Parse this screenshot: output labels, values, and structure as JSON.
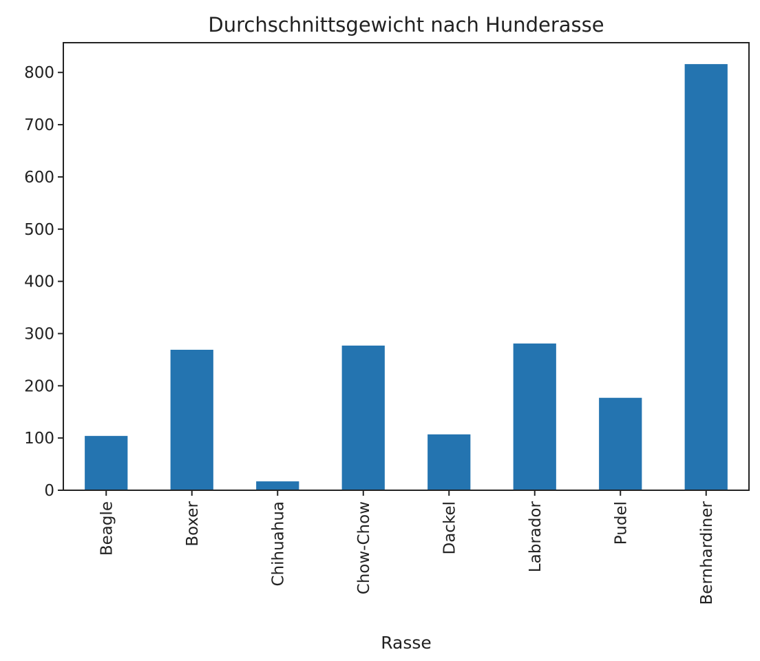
{
  "chart_data": {
    "type": "bar",
    "title": "Durchschnittsgewicht nach Hunderasse",
    "xlabel": "Rasse",
    "ylabel": "",
    "categories": [
      "Beagle",
      "Boxer",
      "Chihuahua",
      "Chow-Chow",
      "Dackel",
      "Labrador",
      "Pudel",
      "Bernhardiner"
    ],
    "values": [
      104,
      269,
      17,
      277,
      107,
      281,
      177,
      816
    ],
    "ylim": [
      0,
      857
    ],
    "yticks": [
      0,
      100,
      200,
      300,
      400,
      500,
      600,
      700,
      800
    ],
    "grid": false,
    "bar_color": "#2474b0"
  }
}
